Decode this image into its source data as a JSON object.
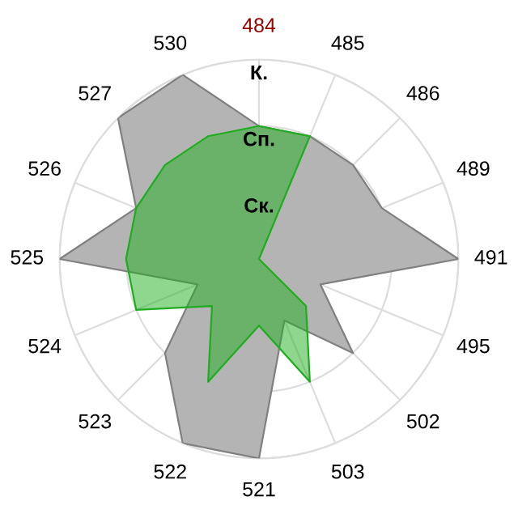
{
  "chart_data": {
    "type": "radar",
    "categories": [
      "484",
      "485",
      "486",
      "489",
      "491",
      "495",
      "502",
      "503",
      "521",
      "522",
      "523",
      "524",
      "525",
      "526",
      "527",
      "530"
    ],
    "ylim": [
      0,
      3
    ],
    "yticks": [
      {
        "value": 1,
        "label": "Ск."
      },
      {
        "value": 2,
        "label": "Сп."
      },
      {
        "value": 3,
        "label": "К."
      }
    ],
    "grid": true,
    "series": [
      {
        "color": "#b4b4b4",
        "values": [
          2,
          2,
          2,
          2,
          3,
          1,
          2,
          1,
          3,
          3,
          2,
          1,
          3,
          2,
          3,
          3
        ]
      },
      {
        "color": "#1fad1f",
        "values": [
          2,
          2,
          0,
          0,
          0,
          0,
          1,
          2,
          1,
          2,
          1,
          2,
          2,
          2,
          2,
          2
        ]
      }
    ]
  }
}
